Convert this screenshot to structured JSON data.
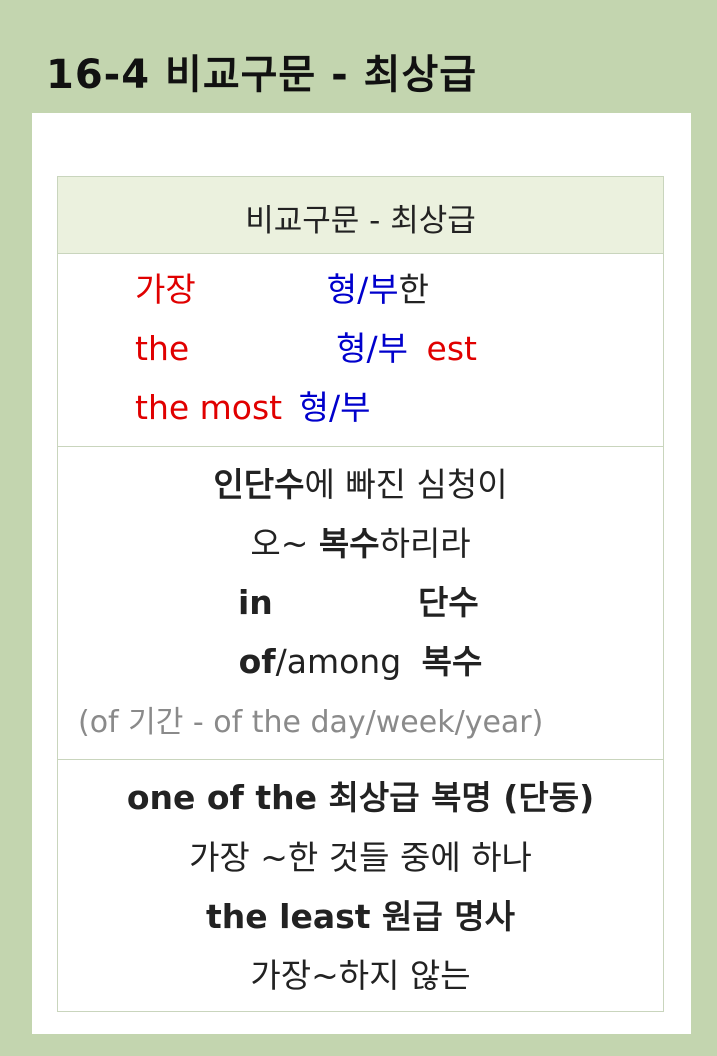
{
  "title": "16-4 비교구문 - 최상급",
  "box": {
    "header": "비교구문 - 최상급",
    "patterns": [
      {
        "red": "가장",
        "blue": "형/부",
        "plain": "한"
      },
      {
        "red": "the",
        "blue": "형/부",
        "blue2": "est"
      },
      {
        "red": "the most",
        "blue": "형/부"
      }
    ],
    "mnemonic": {
      "line1_bold": "인단수",
      "line1_rest": "에 빠진 심청이",
      "line2_plain1": "오~ ",
      "line2_bold": "복수",
      "line2_plain2": "하리라",
      "line3_left": "in",
      "line3_right": "단수",
      "line4_bold1": "of",
      "line4_plain": "/among",
      "line4_bold2": "복수",
      "line5": "(of 기간 - of the day/week/year)"
    },
    "extra": {
      "line1": "one of the 최상급 복명 (단동)",
      "line2": "가장 ~한 것들 중에 하나",
      "line3": "the least 원급 명사",
      "line4": "가장~하지 않는"
    }
  }
}
